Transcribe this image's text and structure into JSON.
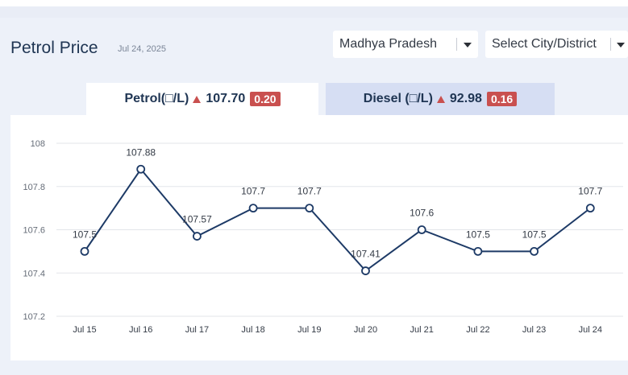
{
  "header": {
    "title": "Petrol Price",
    "date": "Jul 24, 2025"
  },
  "filters": {
    "state": "Madhya Pradesh",
    "city": "Select City/District"
  },
  "tabs": [
    {
      "fuel": "Petrol(□/L)",
      "price": "107.70",
      "change": "0.20",
      "direction": "up",
      "active": true
    },
    {
      "fuel": "Diesel (□/L)",
      "price": "92.98",
      "change": "0.16",
      "direction": "up",
      "active": false
    }
  ],
  "colors": {
    "line": "#1d3a66",
    "change_badge": "#c9504f",
    "active_tab": "#ffffff",
    "inactive_tab": "#d6def3"
  },
  "chart_data": {
    "type": "line",
    "categories": [
      "Jul 15",
      "Jul 16",
      "Jul 17",
      "Jul 18",
      "Jul 19",
      "Jul 20",
      "Jul 21",
      "Jul 22",
      "Jul 23",
      "Jul 24"
    ],
    "values": [
      107.5,
      107.88,
      107.57,
      107.7,
      107.7,
      107.41,
      107.6,
      107.5,
      107.5,
      107.7
    ],
    "data_labels": [
      "107.5",
      "107.88",
      "107.57",
      "107.7",
      "107.7",
      "107.41",
      "107.6",
      "107.5",
      "107.5",
      "107.7"
    ],
    "ylim": [
      107.2,
      108
    ],
    "yticks": [
      "107.2",
      "107.4",
      "107.6",
      "107.8",
      "108"
    ],
    "grid": true,
    "legend": "none"
  }
}
